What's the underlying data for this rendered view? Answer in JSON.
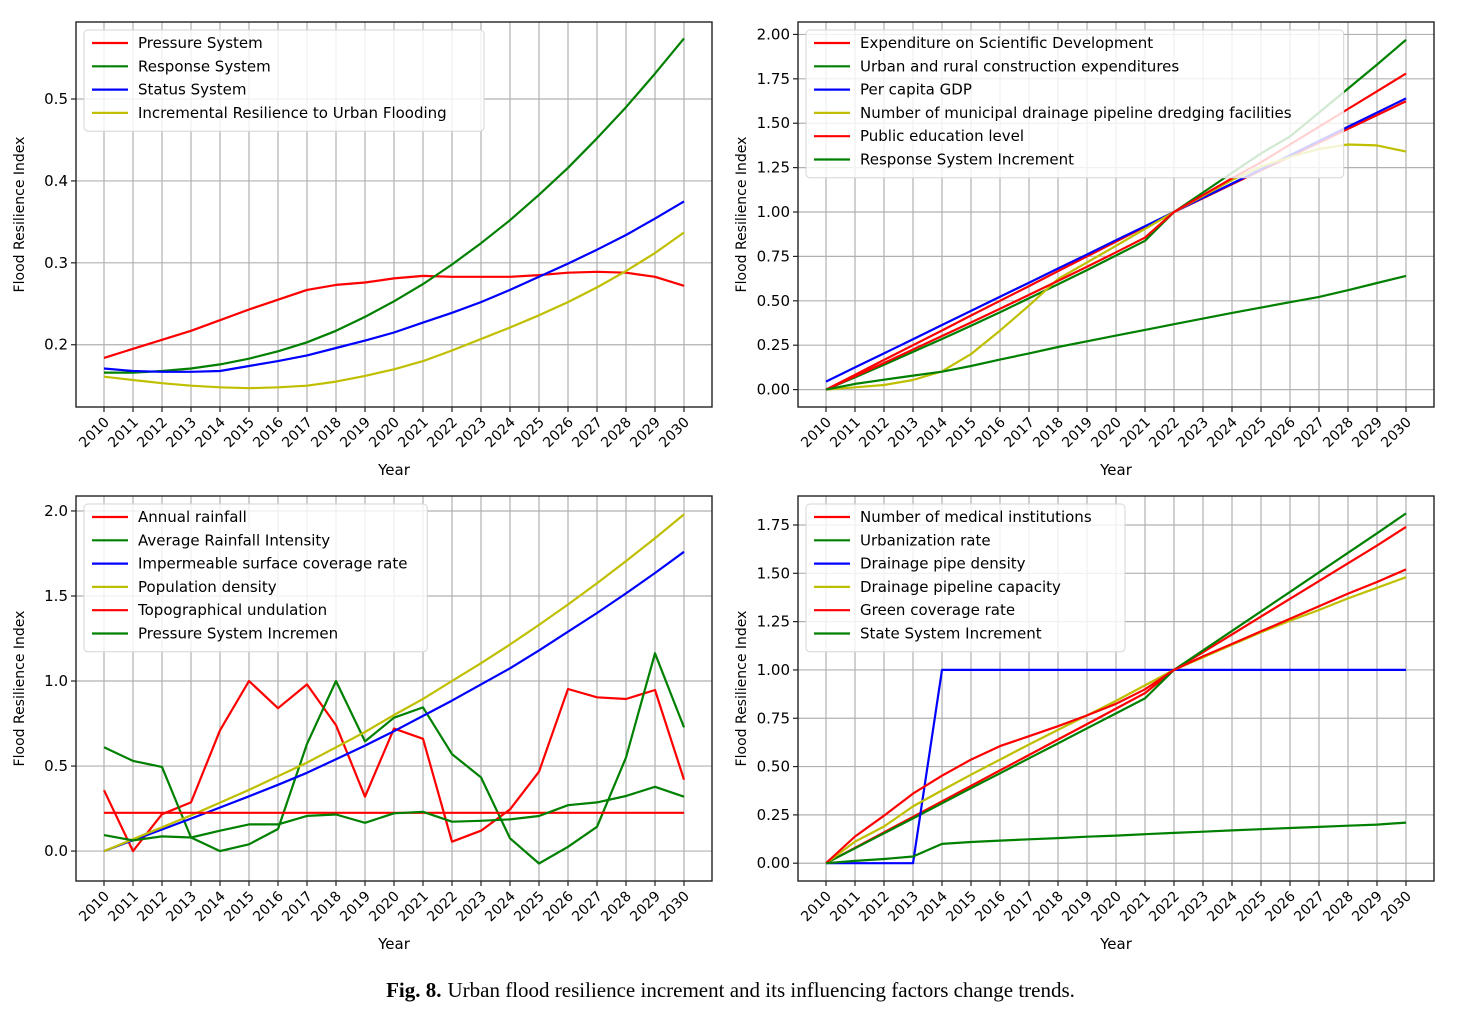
{
  "caption": {
    "label": "Fig. 8.",
    "text": "Urban flood resilience increment and its influencing factors change trends."
  },
  "chart_data": [
    {
      "type": "line",
      "position": "top-left",
      "title": "",
      "xlabel": "Year",
      "ylabel": "Flood Resilience Index",
      "x": [
        2010,
        2011,
        2012,
        2013,
        2014,
        2015,
        2016,
        2017,
        2018,
        2019,
        2020,
        2021,
        2022,
        2023,
        2024,
        2025,
        2026,
        2027,
        2028,
        2029,
        2030
      ],
      "ylim": [
        0.124,
        0.594
      ],
      "yticks": [
        0.2,
        0.3,
        0.4,
        0.5
      ],
      "ytick_labels": [
        "0.2",
        "0.3",
        "0.4",
        "0.5"
      ],
      "grid": true,
      "legend": "top-left",
      "series": [
        {
          "name": "Pressure System",
          "color": "#ff0000",
          "values": [
            0.184,
            0.195,
            0.206,
            0.217,
            0.23,
            0.243,
            0.255,
            0.267,
            0.273,
            0.276,
            0.281,
            0.284,
            0.283,
            0.283,
            0.283,
            0.285,
            0.288,
            0.289,
            0.288,
            0.283,
            0.272
          ]
        },
        {
          "name": "Response System",
          "color": "#008000",
          "values": [
            0.166,
            0.166,
            0.168,
            0.171,
            0.176,
            0.183,
            0.192,
            0.203,
            0.217,
            0.234,
            0.253,
            0.274,
            0.298,
            0.324,
            0.352,
            0.383,
            0.416,
            0.452,
            0.49,
            0.531,
            0.574
          ]
        },
        {
          "name": "Status System",
          "color": "#0000ff",
          "values": [
            0.171,
            0.168,
            0.167,
            0.167,
            0.168,
            0.174,
            0.18,
            0.187,
            0.196,
            0.205,
            0.215,
            0.227,
            0.239,
            0.252,
            0.267,
            0.283,
            0.299,
            0.316,
            0.334,
            0.354,
            0.375
          ]
        },
        {
          "name": "Incremental Resilience to Urban Flooding",
          "color": "#bfbf00",
          "values": [
            0.161,
            0.157,
            0.153,
            0.15,
            0.148,
            0.147,
            0.148,
            0.15,
            0.155,
            0.162,
            0.17,
            0.18,
            0.193,
            0.207,
            0.221,
            0.236,
            0.252,
            0.27,
            0.29,
            0.312,
            0.337
          ]
        }
      ]
    },
    {
      "type": "line",
      "position": "top-right",
      "title": "",
      "xlabel": "Year",
      "ylabel": "Flood Resilience Index",
      "x": [
        2010,
        2011,
        2012,
        2013,
        2014,
        2015,
        2016,
        2017,
        2018,
        2019,
        2020,
        2021,
        2022,
        2023,
        2024,
        2025,
        2026,
        2027,
        2028,
        2029,
        2030
      ],
      "ylim": [
        -0.098,
        2.07
      ],
      "yticks": [
        0,
        0.25,
        0.5,
        0.75,
        1.0,
        1.25,
        1.5,
        1.75,
        2.0
      ],
      "ytick_labels": [
        "0.00",
        "0.25",
        "0.50",
        "0.75",
        "1.00",
        "1.25",
        "1.50",
        "1.75",
        "2.00"
      ],
      "grid": true,
      "legend": "top-left",
      "series": [
        {
          "name": "Expenditure on Scientific Development",
          "color": "#ff0000",
          "values": [
            0.0,
            0.083,
            0.167,
            0.25,
            0.333,
            0.417,
            0.5,
            0.583,
            0.667,
            0.75,
            0.833,
            0.917,
            1.0,
            1.078,
            1.156,
            1.234,
            1.312,
            1.39,
            1.468,
            1.546,
            1.624
          ]
        },
        {
          "name": "Urban and rural construction expenditures",
          "color": "#008000",
          "values": [
            0.0,
            0.069,
            0.14,
            0.212,
            0.285,
            0.36,
            0.436,
            0.514,
            0.593,
            0.673,
            0.755,
            0.838,
            1.0,
            1.11,
            1.22,
            1.33,
            1.425,
            1.56,
            1.695,
            1.83,
            1.97
          ]
        },
        {
          "name": "Per capita GDP",
          "color": "#0000ff",
          "values": [
            0.045,
            0.125,
            0.204,
            0.284,
            0.364,
            0.443,
            0.523,
            0.602,
            0.682,
            0.761,
            0.841,
            0.92,
            1.0,
            1.08,
            1.16,
            1.24,
            1.32,
            1.4,
            1.48,
            1.56,
            1.64
          ]
        },
        {
          "name": "Number of municipal drainage pipeline dredging facilities",
          "color": "#bfbf00",
          "values": [
            0.0,
            0.013,
            0.026,
            0.054,
            0.103,
            0.2,
            0.332,
            0.473,
            0.623,
            0.716,
            0.81,
            0.905,
            1.0,
            1.09,
            1.18,
            1.255,
            1.31,
            1.355,
            1.38,
            1.375,
            1.34
          ]
        },
        {
          "name": "Public education level",
          "color": "#ff0000",
          "values": [
            0.0,
            0.075,
            0.15,
            0.226,
            0.302,
            0.378,
            0.455,
            0.533,
            0.612,
            0.692,
            0.773,
            0.856,
            1.0,
            1.095,
            1.19,
            1.28,
            1.38,
            1.48,
            1.58,
            1.68,
            1.78
          ]
        },
        {
          "name": "Response System Increment",
          "color": "#008000",
          "values": [
            0.0,
            0.032,
            0.056,
            0.079,
            0.101,
            0.133,
            0.169,
            0.204,
            0.24,
            0.272,
            0.304,
            0.336,
            0.368,
            0.4,
            0.432,
            0.462,
            0.492,
            0.522,
            0.56,
            0.6,
            0.64
          ]
        }
      ]
    },
    {
      "type": "line",
      "position": "bottom-left",
      "title": "",
      "xlabel": "Year",
      "ylabel": "Flood Resilience Index",
      "x": [
        2010,
        2011,
        2012,
        2013,
        2014,
        2015,
        2016,
        2017,
        2018,
        2019,
        2020,
        2021,
        2022,
        2023,
        2024,
        2025,
        2026,
        2027,
        2028,
        2029,
        2030
      ],
      "ylim": [
        -0.176,
        2.088
      ],
      "yticks": [
        0.0,
        0.5,
        1.0,
        1.5,
        2.0
      ],
      "ytick_labels": [
        "0.0",
        "0.5",
        "1.0",
        "1.5",
        "2.0"
      ],
      "grid": true,
      "legend": "top-left",
      "series": [
        {
          "name": "Annual rainfall",
          "color": "#ff0000",
          "values": [
            0.358,
            0.0,
            0.217,
            0.286,
            0.71,
            1.0,
            0.84,
            0.98,
            0.74,
            0.32,
            0.72,
            0.66,
            0.055,
            0.12,
            0.245,
            0.467,
            0.953,
            0.904,
            0.894,
            0.947,
            0.42
          ]
        },
        {
          "name": "Average Rainfall Intensity",
          "color": "#008000",
          "values": [
            0.61,
            0.53,
            0.495,
            0.08,
            0.0,
            0.04,
            0.13,
            0.63,
            1.0,
            0.645,
            0.784,
            0.845,
            0.57,
            0.433,
            0.075,
            -0.073,
            0.025,
            0.143,
            0.55,
            1.163,
            0.727
          ]
        },
        {
          "name": "Impermeable surface coverage rate",
          "color": "#0000ff",
          "values": [
            0.0,
            0.064,
            0.127,
            0.191,
            0.256,
            0.322,
            0.39,
            0.46,
            0.54,
            0.62,
            0.705,
            0.795,
            0.885,
            0.98,
            1.075,
            1.18,
            1.29,
            1.4,
            1.515,
            1.635,
            1.76
          ]
        },
        {
          "name": "Population density",
          "color": "#bfbf00",
          "values": [
            0.0,
            0.07,
            0.14,
            0.21,
            0.285,
            0.36,
            0.44,
            0.52,
            0.61,
            0.7,
            0.8,
            0.895,
            1.0,
            1.105,
            1.215,
            1.33,
            1.45,
            1.575,
            1.705,
            1.84,
            1.98
          ]
        },
        {
          "name": "Topographical undulation",
          "color": "#ff0000",
          "values": [
            0.225,
            0.225,
            0.225,
            0.225,
            0.225,
            0.225,
            0.225,
            0.225,
            0.225,
            0.225,
            0.225,
            0.225,
            0.225,
            0.225,
            0.225,
            0.225,
            0.225,
            0.225,
            0.225,
            0.225,
            0.225
          ]
        },
        {
          "name": "Pressure System Incremen",
          "color": "#008000",
          "values": [
            0.094,
            0.063,
            0.086,
            0.08,
            0.12,
            0.157,
            0.157,
            0.207,
            0.215,
            0.166,
            0.222,
            0.231,
            0.173,
            0.178,
            0.186,
            0.206,
            0.27,
            0.286,
            0.324,
            0.378,
            0.32
          ]
        }
      ]
    },
    {
      "type": "line",
      "position": "bottom-right",
      "title": "",
      "xlabel": "Year",
      "ylabel": "Flood Resilience Index",
      "x": [
        2010,
        2011,
        2012,
        2013,
        2014,
        2015,
        2016,
        2017,
        2018,
        2019,
        2020,
        2021,
        2022,
        2023,
        2024,
        2025,
        2026,
        2027,
        2028,
        2029,
        2030
      ],
      "ylim": [
        -0.092,
        1.9
      ],
      "yticks": [
        0,
        0.25,
        0.5,
        0.75,
        1.0,
        1.25,
        1.5,
        1.75
      ],
      "ytick_labels": [
        "0.00",
        "0.25",
        "0.50",
        "0.75",
        "1.00",
        "1.25",
        "1.50",
        "1.75"
      ],
      "grid": true,
      "legend": "top-left",
      "series": [
        {
          "name": "Number of medical institutions",
          "color": "#ff0000",
          "values": [
            0.0,
            0.08,
            0.16,
            0.24,
            0.32,
            0.4,
            0.48,
            0.56,
            0.64,
            0.72,
            0.8,
            0.88,
            1.0,
            1.092,
            1.184,
            1.276,
            1.368,
            1.46,
            1.552,
            1.644,
            1.74
          ]
        },
        {
          "name": "Urbanization rate",
          "color": "#008000",
          "values": [
            0.0,
            0.077,
            0.155,
            0.232,
            0.31,
            0.388,
            0.465,
            0.543,
            0.62,
            0.698,
            0.775,
            0.853,
            1.0,
            1.101,
            1.202,
            1.303,
            1.404,
            1.505,
            1.606,
            1.707,
            1.81
          ]
        },
        {
          "name": "Drainage pipe density",
          "color": "#0000ff",
          "values": [
            0.0,
            0.0,
            0.0,
            0.0,
            1.0,
            1.0,
            1.0,
            1.0,
            1.0,
            1.0,
            1.0,
            1.0,
            1.0,
            1.0,
            1.0,
            1.0,
            1.0,
            1.0,
            1.0,
            1.0,
            1.0
          ]
        },
        {
          "name": "Drainage pipeline capacity",
          "color": "#bfbf00",
          "values": [
            0.0,
            0.112,
            0.19,
            0.294,
            0.377,
            0.458,
            0.536,
            0.614,
            0.69,
            0.765,
            0.84,
            0.92,
            1.0,
            1.065,
            1.13,
            1.195,
            1.255,
            1.31,
            1.37,
            1.425,
            1.48
          ]
        },
        {
          "name": "Green coverage rate",
          "color": "#ff0000",
          "values": [
            0.0,
            0.138,
            0.246,
            0.36,
            0.453,
            0.536,
            0.606,
            0.657,
            0.709,
            0.765,
            0.825,
            0.9,
            1.0,
            1.07,
            1.135,
            1.2,
            1.265,
            1.33,
            1.395,
            1.455,
            1.52
          ]
        },
        {
          "name": "State System Increment",
          "color": "#008000",
          "values": [
            0.0,
            0.012,
            0.022,
            0.035,
            0.1,
            0.11,
            0.117,
            0.124,
            0.13,
            0.137,
            0.143,
            0.15,
            0.157,
            0.163,
            0.17,
            0.176,
            0.182,
            0.188,
            0.194,
            0.2,
            0.21
          ]
        }
      ]
    }
  ]
}
